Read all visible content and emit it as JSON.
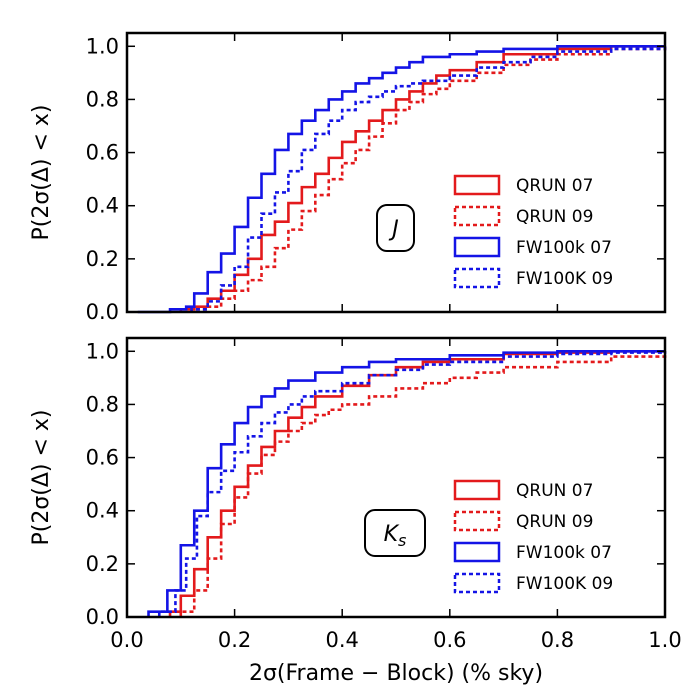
{
  "chart_data": [
    {
      "type": "line",
      "drawstyle": "steps",
      "panel_label": "J",
      "xlabel": "",
      "ylabel": "P(2σ(Δ) < x)",
      "xlim": [
        0.0,
        1.0
      ],
      "ylim": [
        0.0,
        1.05
      ],
      "x_ticks": [
        "0.0",
        "0.2",
        "0.4",
        "0.6",
        "0.8",
        "1.0"
      ],
      "y_ticks": [
        "0.0",
        "0.2",
        "0.4",
        "0.6",
        "0.8",
        "1.0"
      ],
      "grid": false,
      "legend_position": "lower-right",
      "series": [
        {
          "name": "QRUN 07",
          "color": "#e31a1c",
          "linestyle": "solid",
          "x": [
            0.1,
            0.125,
            0.15,
            0.175,
            0.2,
            0.225,
            0.25,
            0.275,
            0.3,
            0.325,
            0.35,
            0.375,
            0.4,
            0.425,
            0.45,
            0.475,
            0.5,
            0.525,
            0.55,
            0.575,
            0.6,
            0.65,
            0.7,
            0.8,
            0.9,
            1.0
          ],
          "y": [
            0.01,
            0.02,
            0.05,
            0.08,
            0.14,
            0.2,
            0.29,
            0.34,
            0.41,
            0.47,
            0.52,
            0.58,
            0.64,
            0.68,
            0.72,
            0.76,
            0.8,
            0.83,
            0.86,
            0.89,
            0.91,
            0.94,
            0.97,
            0.99,
            1.0,
            1.0
          ]
        },
        {
          "name": "QRUN 09",
          "color": "#e31a1c",
          "linestyle": "dotted",
          "x": [
            0.12,
            0.15,
            0.175,
            0.2,
            0.225,
            0.25,
            0.275,
            0.3,
            0.325,
            0.35,
            0.375,
            0.4,
            0.425,
            0.45,
            0.475,
            0.5,
            0.525,
            0.55,
            0.575,
            0.6,
            0.65,
            0.7,
            0.75,
            0.8,
            0.9,
            1.0
          ],
          "y": [
            0.01,
            0.02,
            0.05,
            0.08,
            0.12,
            0.17,
            0.24,
            0.31,
            0.38,
            0.44,
            0.5,
            0.56,
            0.61,
            0.66,
            0.71,
            0.76,
            0.79,
            0.82,
            0.84,
            0.87,
            0.9,
            0.93,
            0.95,
            0.97,
            0.99,
            1.0
          ]
        },
        {
          "name": "FW100k 07",
          "color": "#1414e6",
          "linestyle": "solid",
          "x": [
            0.02,
            0.08,
            0.11,
            0.125,
            0.15,
            0.175,
            0.2,
            0.225,
            0.25,
            0.275,
            0.3,
            0.325,
            0.35,
            0.375,
            0.4,
            0.425,
            0.45,
            0.475,
            0.5,
            0.525,
            0.55,
            0.6,
            0.65,
            0.7,
            0.8,
            1.0
          ],
          "y": [
            0.0,
            0.01,
            0.02,
            0.07,
            0.15,
            0.22,
            0.32,
            0.43,
            0.52,
            0.61,
            0.67,
            0.72,
            0.76,
            0.8,
            0.83,
            0.86,
            0.88,
            0.9,
            0.92,
            0.94,
            0.96,
            0.97,
            0.98,
            0.99,
            1.0,
            1.0
          ]
        },
        {
          "name": "FW100K 09",
          "color": "#1414e6",
          "linestyle": "dotted",
          "x": [
            0.12,
            0.15,
            0.175,
            0.2,
            0.225,
            0.25,
            0.275,
            0.3,
            0.325,
            0.35,
            0.375,
            0.4,
            0.425,
            0.45,
            0.475,
            0.5,
            0.525,
            0.55,
            0.6,
            0.65,
            0.7,
            0.75,
            0.8,
            0.9,
            1.0
          ],
          "y": [
            0.01,
            0.04,
            0.1,
            0.17,
            0.28,
            0.37,
            0.45,
            0.53,
            0.61,
            0.67,
            0.72,
            0.76,
            0.79,
            0.81,
            0.83,
            0.85,
            0.86,
            0.87,
            0.89,
            0.92,
            0.94,
            0.96,
            0.98,
            0.99,
            1.0
          ]
        }
      ]
    },
    {
      "type": "line",
      "drawstyle": "steps",
      "panel_label": "Ks",
      "xlabel": "2σ(Frame − Block) (% sky)",
      "ylabel": "P(2σ(Δ) < x)",
      "xlim": [
        0.0,
        1.0
      ],
      "ylim": [
        0.0,
        1.05
      ],
      "x_ticks": [
        "0.0",
        "0.2",
        "0.4",
        "0.6",
        "0.8",
        "1.0"
      ],
      "y_ticks": [
        "0.0",
        "0.2",
        "0.4",
        "0.6",
        "0.8",
        "1.0"
      ],
      "grid": false,
      "legend_position": "lower-right",
      "series": [
        {
          "name": "QRUN 07",
          "color": "#e31a1c",
          "linestyle": "solid",
          "x": [
            0.08,
            0.1,
            0.125,
            0.15,
            0.175,
            0.2,
            0.225,
            0.25,
            0.275,
            0.3,
            0.325,
            0.35,
            0.4,
            0.45,
            0.5,
            0.55,
            0.6,
            0.7,
            0.8,
            0.9,
            1.0
          ],
          "y": [
            0.02,
            0.08,
            0.18,
            0.3,
            0.4,
            0.49,
            0.57,
            0.64,
            0.7,
            0.75,
            0.79,
            0.83,
            0.87,
            0.91,
            0.94,
            0.96,
            0.97,
            0.99,
            0.995,
            1.0,
            1.0
          ]
        },
        {
          "name": "QRUN 09",
          "color": "#e31a1c",
          "linestyle": "dotted",
          "x": [
            0.1,
            0.125,
            0.15,
            0.175,
            0.2,
            0.225,
            0.25,
            0.275,
            0.3,
            0.325,
            0.35,
            0.375,
            0.4,
            0.45,
            0.5,
            0.55,
            0.6,
            0.65,
            0.7,
            0.8,
            0.9,
            1.0
          ],
          "y": [
            0.02,
            0.1,
            0.22,
            0.35,
            0.45,
            0.54,
            0.61,
            0.66,
            0.7,
            0.73,
            0.76,
            0.78,
            0.8,
            0.83,
            0.86,
            0.88,
            0.9,
            0.92,
            0.94,
            0.96,
            0.98,
            1.0
          ]
        },
        {
          "name": "FW100k 07",
          "color": "#1414e6",
          "linestyle": "solid",
          "x": [
            0.04,
            0.075,
            0.1,
            0.125,
            0.15,
            0.175,
            0.2,
            0.225,
            0.25,
            0.275,
            0.3,
            0.35,
            0.4,
            0.45,
            0.5,
            0.6,
            0.7,
            0.8,
            1.0
          ],
          "y": [
            0.02,
            0.1,
            0.27,
            0.4,
            0.56,
            0.65,
            0.73,
            0.79,
            0.83,
            0.86,
            0.89,
            0.92,
            0.94,
            0.96,
            0.97,
            0.985,
            0.995,
            1.0,
            1.0
          ]
        },
        {
          "name": "FW100K 09",
          "color": "#1414e6",
          "linestyle": "dotted",
          "x": [
            0.06,
            0.09,
            0.11,
            0.13,
            0.15,
            0.175,
            0.2,
            0.225,
            0.25,
            0.275,
            0.3,
            0.325,
            0.35,
            0.4,
            0.45,
            0.5,
            0.55,
            0.6,
            0.7,
            0.8,
            0.9,
            1.0
          ],
          "y": [
            0.02,
            0.1,
            0.22,
            0.38,
            0.47,
            0.55,
            0.62,
            0.68,
            0.73,
            0.77,
            0.8,
            0.83,
            0.85,
            0.88,
            0.91,
            0.93,
            0.95,
            0.96,
            0.98,
            0.99,
            0.995,
            1.0
          ]
        }
      ]
    }
  ]
}
